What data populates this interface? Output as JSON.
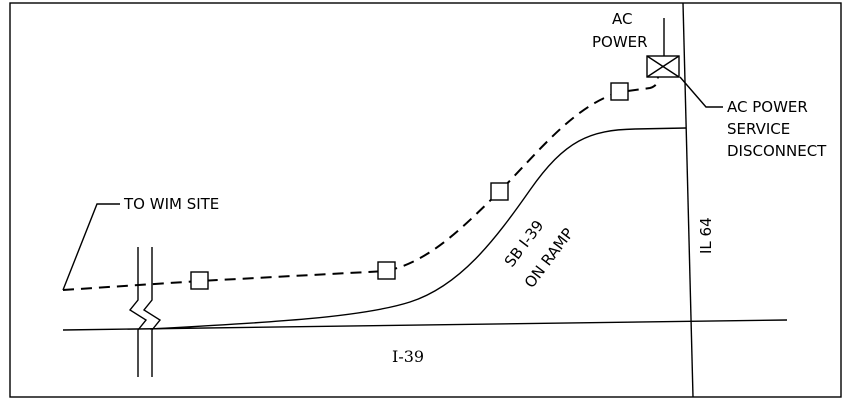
{
  "labels": {
    "ac_power_line1": "AC",
    "ac_power_line2": "POWER",
    "disconnect_line1": "AC POWER",
    "disconnect_line2": "SERVICE",
    "disconnect_line3": "DISCONNECT",
    "to_wim_site": "TO WIM SITE",
    "ramp_line1": "SB I-39",
    "ramp_line2": "ON RAMP",
    "il64": "IL 64",
    "i39": "I-39"
  },
  "pull_box_count": 4
}
